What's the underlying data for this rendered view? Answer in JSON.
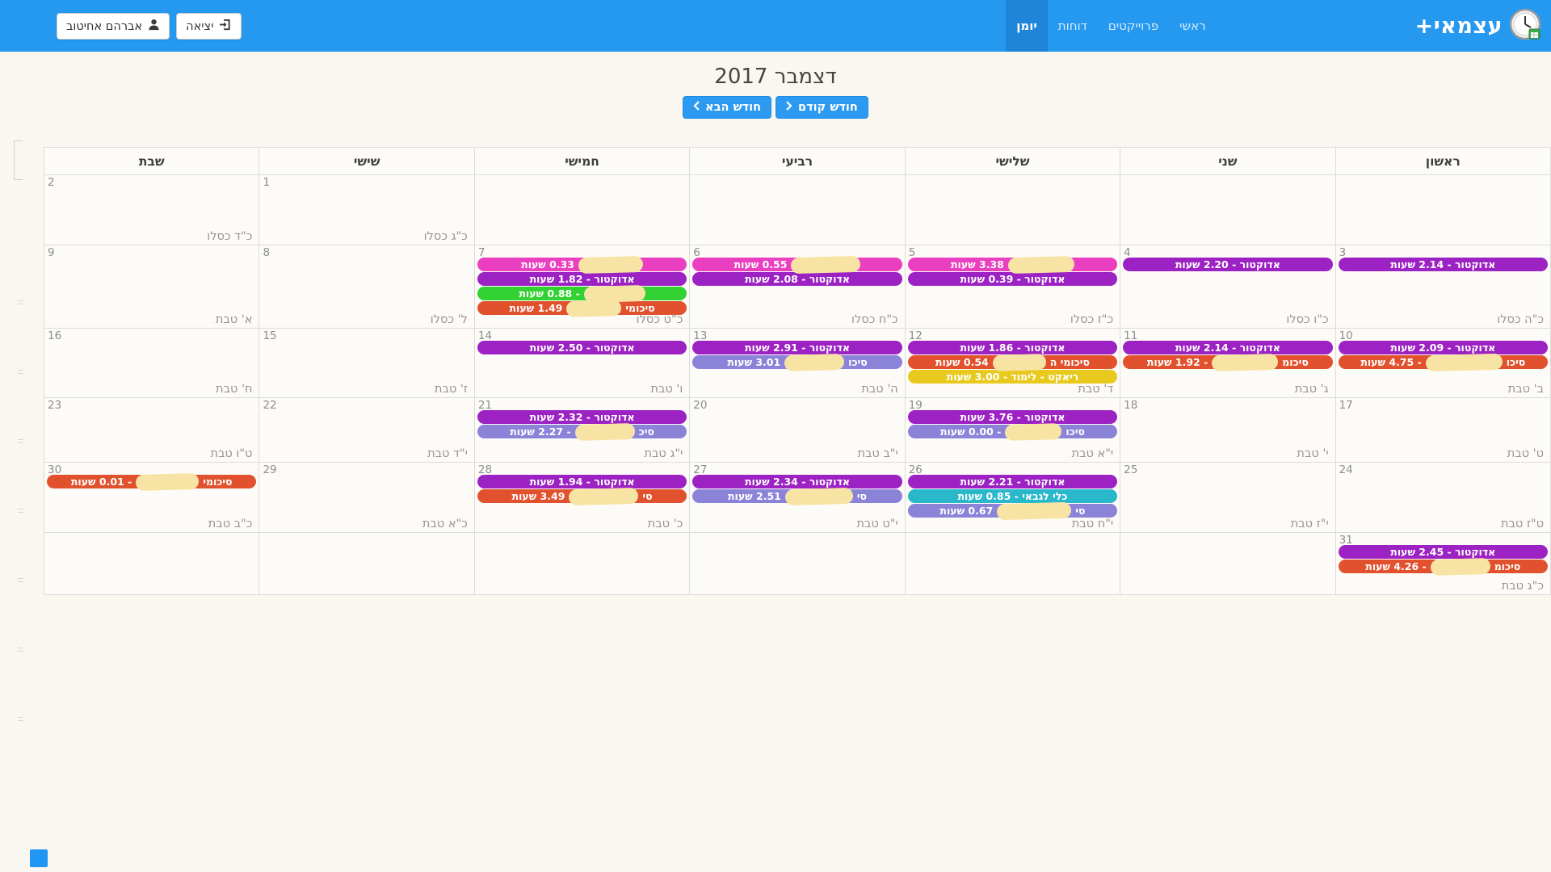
{
  "navbar": {
    "brand": "עצמאי+",
    "items": [
      {
        "label": "ראשי",
        "active": false
      },
      {
        "label": "פרוייקטים",
        "active": false
      },
      {
        "label": "דוחות",
        "active": false
      },
      {
        "label": "יומן",
        "active": true
      }
    ],
    "user_button": "אברהם אחיטוב",
    "logout_button": "יציאה"
  },
  "calendar": {
    "title": "דצמבר 2017",
    "next_month_label": "חודש הבא",
    "prev_month_label": "חודש קודם",
    "weekdays": [
      "ראשון",
      "שני",
      "שלישי",
      "רביעי",
      "חמישי",
      "שישי",
      "שבת"
    ],
    "weeks": [
      [
        {},
        {},
        {},
        {},
        {},
        {
          "num": "1",
          "date": "כ\"ג כסלו",
          "events": []
        },
        {
          "num": "2",
          "date": "כ\"ד כסלו",
          "events": []
        }
      ],
      [
        {
          "num": "3",
          "date": "כ\"ה כסלו",
          "events": [
            {
              "text": "אדוקטור - 2.14 שעות",
              "color": "purple"
            }
          ]
        },
        {
          "num": "4",
          "date": "כ\"ו כסלו",
          "events": [
            {
              "text": "אדוקטור - 2.20 שעות",
              "color": "purple"
            }
          ]
        },
        {
          "num": "5",
          "date": "כ\"ז כסלו",
          "events": [
            {
              "prefix": "",
              "blob": 82,
              "text": "3.38 שעות",
              "color": "pink"
            },
            {
              "text": "אדוקטור - 0.39 שעות",
              "color": "purple"
            }
          ]
        },
        {
          "num": "6",
          "date": "כ\"ח כסלו",
          "events": [
            {
              "prefix": "",
              "blob": 86,
              "text": "0.55 שעות",
              "color": "pink"
            },
            {
              "text": "אדוקטור - 2.08 שעות",
              "color": "purple"
            }
          ]
        },
        {
          "num": "7",
          "date": "כ\"ט כסלו",
          "events": [
            {
              "prefix": "",
              "blob": 80,
              "text": "0.33 שעות",
              "color": "pink"
            },
            {
              "text": "אדוקטור - 1.82 שעות",
              "color": "purple"
            },
            {
              "prefix": "",
              "blob": 76,
              "text": "- 0.88 שעות",
              "color": "green"
            },
            {
              "prefix": "סיכומי",
              "blob": 68,
              "text": "1.49 שעות",
              "color": "orange"
            }
          ]
        },
        {
          "num": "8",
          "date": "ל' כסלו",
          "events": []
        },
        {
          "num": "9",
          "date": "א' טבת",
          "events": []
        }
      ],
      [
        {
          "num": "10",
          "date": "ב' טבת",
          "events": [
            {
              "text": "אדוקטור - 2.09 שעות",
              "color": "purple"
            },
            {
              "prefix": "סיכו",
              "blob": 95,
              "text": "- 4.75 שעות",
              "color": "orange"
            }
          ]
        },
        {
          "num": "11",
          "date": "ג' טבת",
          "events": [
            {
              "text": "אדוקטור - 2.14 שעות",
              "color": "purple"
            },
            {
              "prefix": "סיכומ",
              "blob": 82,
              "text": "- 1.92 שעות",
              "color": "orange"
            }
          ]
        },
        {
          "num": "12",
          "date": "ד' טבת",
          "events": [
            {
              "text": "אדוקטור - 1.86 שעות",
              "color": "purple"
            },
            {
              "prefix": "סיכומי ה",
              "blob": 66,
              "text": "0.54 שעות",
              "color": "orange"
            },
            {
              "text": "ריאקט - לימוד - 3.00 שעות",
              "color": "yellow"
            }
          ]
        },
        {
          "num": "13",
          "date": "ה' טבת",
          "events": [
            {
              "text": "אדוקטור - 2.91 שעות",
              "color": "purple"
            },
            {
              "prefix": "סיכו",
              "blob": 74,
              "text": "3.01 שעות",
              "color": "lavender"
            }
          ]
        },
        {
          "num": "14",
          "date": "ו' טבת",
          "events": [
            {
              "text": "אדוקטור - 2.50 שעות",
              "color": "purple"
            }
          ]
        },
        {
          "num": "15",
          "date": "ז' טבת",
          "events": []
        },
        {
          "num": "16",
          "date": "ח' טבת",
          "events": []
        }
      ],
      [
        {
          "num": "17",
          "date": "ט' טבת",
          "events": []
        },
        {
          "num": "18",
          "date": "י' טבת",
          "events": []
        },
        {
          "num": "19",
          "date": "י\"א טבת",
          "events": [
            {
              "text": "אדוקטור - 3.76 שעות",
              "color": "purple"
            },
            {
              "prefix": "סיכו",
              "blob": 70,
              "text": "- 0.00 שעות",
              "color": "lavender"
            }
          ]
        },
        {
          "num": "20",
          "date": "י\"ב טבת",
          "events": []
        },
        {
          "num": "21",
          "date": "י\"ג טבת",
          "events": [
            {
              "text": "אדוקטור - 2.32 שעות",
              "color": "purple"
            },
            {
              "prefix": "סיכ",
              "blob": 74,
              "text": "- 2.27 שעות",
              "color": "lavender"
            }
          ]
        },
        {
          "num": "22",
          "date": "י\"ד טבת",
          "events": []
        },
        {
          "num": "23",
          "date": "ט\"ו טבת",
          "events": []
        }
      ],
      [
        {
          "num": "24",
          "date": "ט\"ז טבת",
          "events": []
        },
        {
          "num": "25",
          "date": "י\"ז טבת",
          "events": []
        },
        {
          "num": "26",
          "date": "י\"ח טבת",
          "events": [
            {
              "text": "אדוקטור - 2.21 שעות",
              "color": "purple"
            },
            {
              "text": "כלי לגבאי - 0.85 שעות",
              "color": "teal"
            },
            {
              "prefix": "סי",
              "blob": 92,
              "text": "0.67 שעות",
              "color": "lavender"
            }
          ]
        },
        {
          "num": "27",
          "date": "י\"ט טבת",
          "events": [
            {
              "text": "אדוקטור - 2.34 שעות",
              "color": "purple"
            },
            {
              "prefix": "סי",
              "blob": 84,
              "text": "2.51 שעות",
              "color": "lavender"
            }
          ]
        },
        {
          "num": "28",
          "date": "כ' טבת",
          "events": [
            {
              "text": "אדוקטור - 1.94 שעות",
              "color": "purple"
            },
            {
              "prefix": "סי",
              "blob": 86,
              "text": "3.49 שעות",
              "color": "orange"
            }
          ]
        },
        {
          "num": "29",
          "date": "כ\"א טבת",
          "events": []
        },
        {
          "num": "30",
          "date": "כ\"ב טבת",
          "events": [
            {
              "prefix": "סיכומי",
              "blob": 78,
              "text": "- 0.01 שעות",
              "color": "orange"
            }
          ]
        }
      ],
      [
        {
          "num": "31",
          "date": "כ\"ג טבת",
          "events": [
            {
              "text": "אדוקטור - 2.45 שעות",
              "color": "purple"
            },
            {
              "prefix": "סיכומ",
              "blob": 74,
              "text": "- 4.26 שעות",
              "color": "orange"
            }
          ]
        },
        {},
        {},
        {},
        {},
        {},
        {}
      ]
    ]
  },
  "colors": {
    "navbar": "#2598f0",
    "navbar_active": "#1f85d8",
    "purple": "#9d22c4",
    "pink": "#ea3fc0",
    "green": "#31d231",
    "orange": "#e2512d",
    "yellow": "#e8ca1f",
    "lavender": "#8b83d8",
    "teal": "#29b7ca",
    "redaction": "#f7e4a4"
  }
}
